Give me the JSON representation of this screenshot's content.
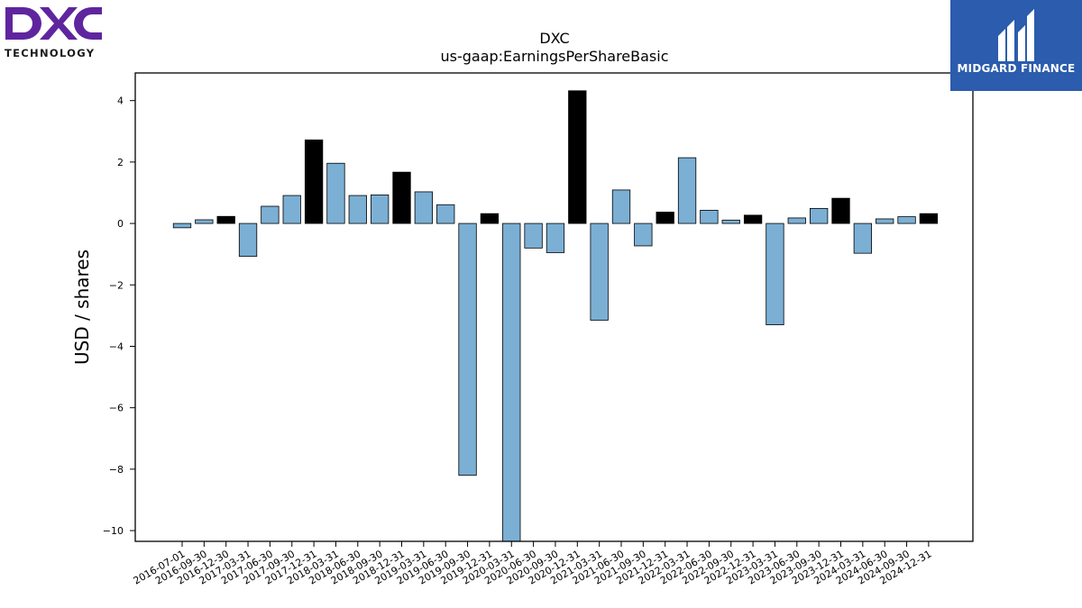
{
  "logos": {
    "left_wordmark": "DXC",
    "left_tagline": "TECHNOLOGY",
    "right_brand": "MIDGARD FINANCE"
  },
  "colors": {
    "positive_bar": "#7bafd4",
    "highlight_bar": "#000000",
    "bar_edge": "#000000",
    "dxc_purple": "#5f259f",
    "midgard_blue": "#2b5cad"
  },
  "chart_data": {
    "type": "bar",
    "title": "DXC",
    "subtitle": "us-gaap:EarningsPerShareBasic",
    "xlabel": "",
    "ylabel": "USD / shares",
    "ylim": [
      -10.35,
      4.9
    ],
    "yticks": [
      4,
      2,
      0,
      -2,
      -4,
      -6,
      -8,
      -10
    ],
    "ytick_labels": [
      "4",
      "2",
      "0",
      "−2",
      "−4",
      "−6",
      "−8",
      "−10"
    ],
    "grid": false,
    "legend": "none",
    "categories": [
      "2016-07-01",
      "2016-09-30",
      "2016-12-30",
      "2017-03-31",
      "2017-06-30",
      "2017-09-30",
      "2017-12-31",
      "2018-03-31",
      "2018-06-30",
      "2018-09-30",
      "2018-12-31",
      "2019-03-31",
      "2019-06-30",
      "2019-09-30",
      "2019-12-31",
      "2020-03-31",
      "2020-06-30",
      "2020-09-30",
      "2020-12-31",
      "2021-03-31",
      "2021-06-30",
      "2021-09-30",
      "2021-12-31",
      "2022-03-31",
      "2022-06-30",
      "2022-09-30",
      "2022-12-31",
      "2023-03-31",
      "2023-06-30",
      "2023-09-30",
      "2023-12-31",
      "2024-03-31",
      "2024-06-30",
      "2024-09-30",
      "2024-12-31"
    ],
    "values": [
      -0.14,
      0.12,
      0.23,
      -1.07,
      0.56,
      0.91,
      2.72,
      1.96,
      0.91,
      0.93,
      1.67,
      1.03,
      0.61,
      -8.2,
      0.32,
      -10.4,
      -0.8,
      -0.95,
      4.32,
      -3.15,
      1.09,
      -0.73,
      0.37,
      2.14,
      0.43,
      0.11,
      0.27,
      -3.3,
      0.18,
      0.49,
      0.82,
      -0.97,
      0.15,
      0.22,
      0.32
    ],
    "highlight": [
      false,
      false,
      true,
      false,
      false,
      false,
      true,
      false,
      false,
      false,
      true,
      false,
      false,
      false,
      true,
      false,
      false,
      false,
      true,
      false,
      false,
      false,
      true,
      false,
      false,
      false,
      true,
      false,
      false,
      false,
      true,
      false,
      false,
      false,
      true
    ]
  }
}
